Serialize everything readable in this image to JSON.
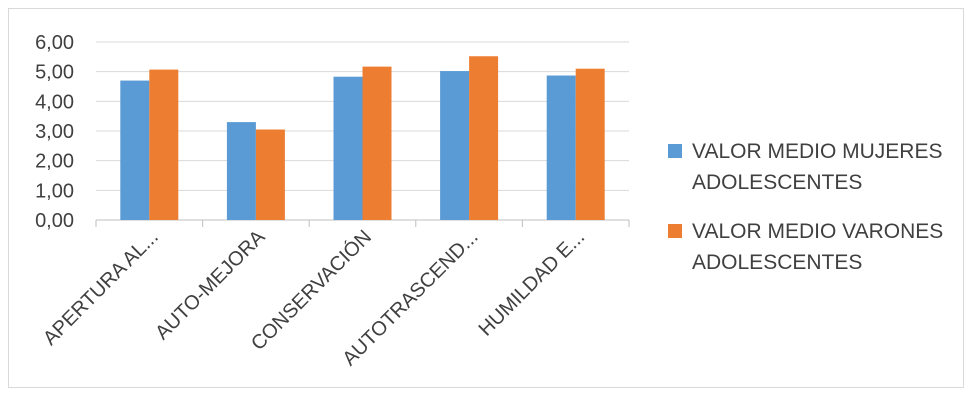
{
  "chart_data": {
    "type": "bar",
    "categories": [
      "APERTURA AL...",
      "AUTO-MEJORA",
      "CONSERVACIÓN",
      "AUTOTRASCEND...",
      "HUMILDAD E..."
    ],
    "series": [
      {
        "name": "VALOR MEDIO MUJERES ADOLESCENTES",
        "color": "#5b9bd5",
        "values": [
          4.7,
          3.3,
          4.83,
          5.02,
          4.87
        ]
      },
      {
        "name": "VALOR MEDIO VARONES ADOLESCENTES",
        "color": "#ed7d31",
        "values": [
          5.07,
          3.05,
          5.17,
          5.52,
          5.1
        ]
      }
    ],
    "y_ticks": [
      "0,00",
      "1,00",
      "2,00",
      "3,00",
      "4,00",
      "5,00",
      "6,00"
    ],
    "ylim": [
      0,
      6
    ],
    "grid": true,
    "legend_position": "right",
    "title": "",
    "xlabel": "",
    "ylabel": ""
  }
}
